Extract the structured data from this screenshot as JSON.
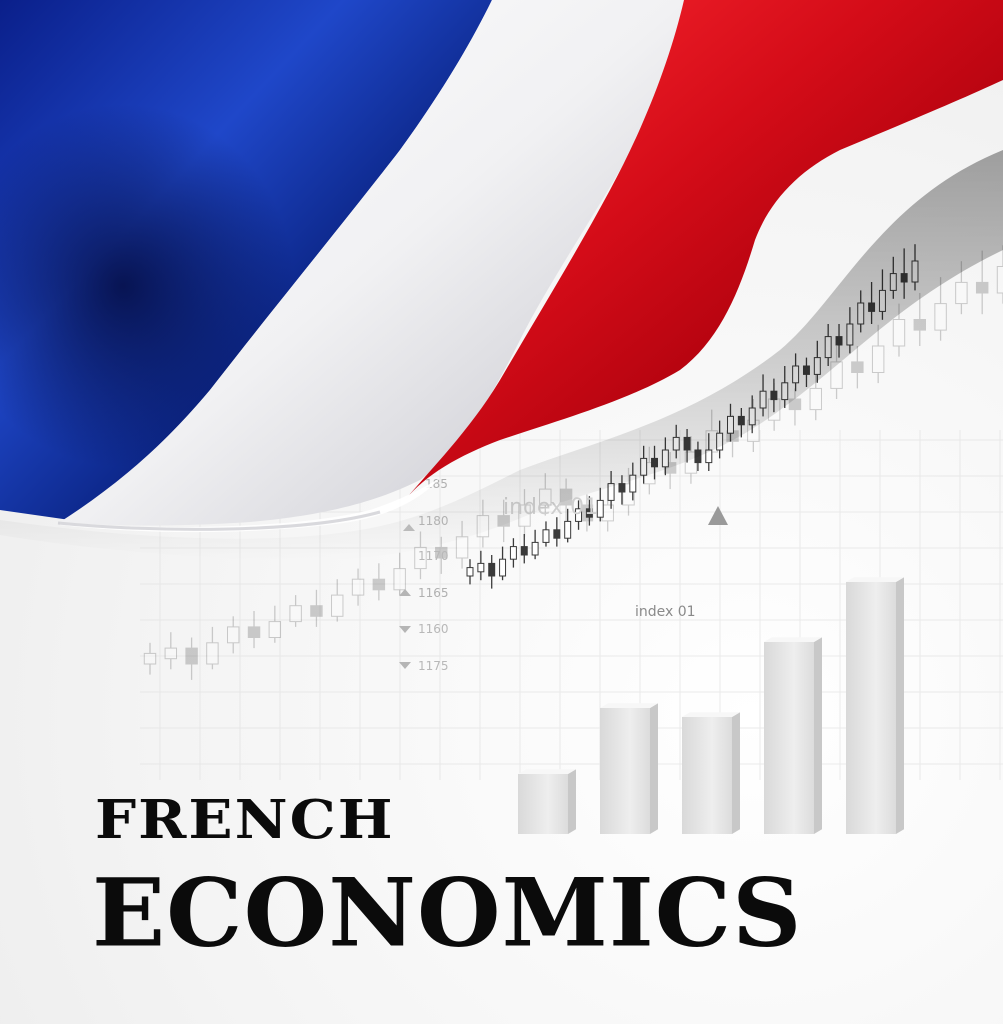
{
  "title": {
    "line1": "FRENCH",
    "line2": "ECONOMICS"
  },
  "chart_labels": {
    "index_a": "index 01",
    "index_b": "index 01",
    "ticks": [
      "185",
      "1180",
      "1170",
      "1165",
      "1160",
      "1175"
    ]
  },
  "colors": {
    "flag_blue": "#1a3fb8",
    "flag_white": "#ffffff",
    "flag_red": "#d8101c",
    "title_text": "#0b0b0b",
    "bars": "#e6e6e6"
  },
  "bar_values": [
    1.0,
    2.1,
    1.95,
    3.2,
    4.2
  ],
  "candles": [
    [
      0.2,
      0.22,
      0.18,
      0.24
    ],
    [
      0.21,
      0.23,
      0.19,
      0.26
    ],
    [
      0.23,
      0.2,
      0.17,
      0.25
    ],
    [
      0.2,
      0.24,
      0.19,
      0.27
    ],
    [
      0.24,
      0.27,
      0.22,
      0.29
    ],
    [
      0.27,
      0.25,
      0.23,
      0.3
    ],
    [
      0.25,
      0.28,
      0.24,
      0.31
    ],
    [
      0.28,
      0.31,
      0.27,
      0.33
    ],
    [
      0.31,
      0.29,
      0.27,
      0.34
    ],
    [
      0.29,
      0.33,
      0.28,
      0.36
    ],
    [
      0.33,
      0.36,
      0.31,
      0.38
    ],
    [
      0.36,
      0.34,
      0.32,
      0.39
    ],
    [
      0.34,
      0.38,
      0.33,
      0.41
    ],
    [
      0.38,
      0.42,
      0.36,
      0.45
    ],
    [
      0.42,
      0.4,
      0.37,
      0.44
    ],
    [
      0.4,
      0.44,
      0.38,
      0.47
    ],
    [
      0.44,
      0.48,
      0.42,
      0.51
    ],
    [
      0.48,
      0.46,
      0.43,
      0.51
    ],
    [
      0.46,
      0.5,
      0.44,
      0.53
    ],
    [
      0.5,
      0.53,
      0.48,
      0.56
    ],
    [
      0.53,
      0.5,
      0.47,
      0.55
    ],
    [
      0.5,
      0.47,
      0.45,
      0.52
    ],
    [
      0.47,
      0.5,
      0.45,
      0.54
    ],
    [
      0.5,
      0.54,
      0.48,
      0.57
    ],
    [
      0.54,
      0.58,
      0.52,
      0.61
    ],
    [
      0.58,
      0.56,
      0.53,
      0.6
    ],
    [
      0.56,
      0.6,
      0.54,
      0.63
    ],
    [
      0.6,
      0.64,
      0.58,
      0.68
    ],
    [
      0.64,
      0.62,
      0.59,
      0.67
    ],
    [
      0.62,
      0.66,
      0.6,
      0.7
    ],
    [
      0.66,
      0.7,
      0.64,
      0.73
    ],
    [
      0.7,
      0.68,
      0.65,
      0.72
    ],
    [
      0.68,
      0.72,
      0.66,
      0.76
    ],
    [
      0.72,
      0.77,
      0.7,
      0.8
    ],
    [
      0.77,
      0.75,
      0.72,
      0.8
    ],
    [
      0.75,
      0.8,
      0.73,
      0.84
    ],
    [
      0.8,
      0.85,
      0.78,
      0.88
    ],
    [
      0.85,
      0.83,
      0.8,
      0.9
    ],
    [
      0.83,
      0.88,
      0.81,
      0.93
    ],
    [
      0.88,
      0.92,
      0.86,
      0.96
    ],
    [
      0.92,
      0.9,
      0.86,
      0.98
    ],
    [
      0.9,
      0.95,
      0.88,
      0.99
    ]
  ]
}
